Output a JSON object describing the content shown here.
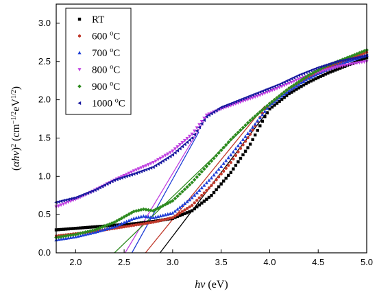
{
  "chart_data": {
    "type": "scatter",
    "xlabel": {
      "italic": "hv",
      "rest": " (eV)"
    },
    "ylabel": {
      "lead": "(",
      "italic": "αhv",
      "mid": ")",
      "sup1": "2",
      "unit": " (cm",
      "sup2": "−1/2",
      "unit2": "eV",
      "sup3": "1/2",
      "tail": ")"
    },
    "xlim": [
      1.8,
      5.0
    ],
    "ylim": [
      0.0,
      3.25
    ],
    "xticks": [
      "2.0",
      "2.5",
      "3.0",
      "3.5",
      "4.0",
      "4.5",
      "5.0"
    ],
    "yticks": [
      "0.0",
      "0.5",
      "1.0",
      "1.5",
      "2.0",
      "2.5",
      "3.0"
    ],
    "legend_position": "top-left",
    "series": [
      {
        "name": "RT",
        "unit_sup": "",
        "color": "#000000",
        "marker": "square",
        "points": [
          [
            1.8,
            0.3
          ],
          [
            2.0,
            0.32
          ],
          [
            2.2,
            0.34
          ],
          [
            2.4,
            0.36
          ],
          [
            2.6,
            0.38
          ],
          [
            2.8,
            0.41
          ],
          [
            3.0,
            0.45
          ],
          [
            3.2,
            0.55
          ],
          [
            3.4,
            0.75
          ],
          [
            3.6,
            1.05
          ],
          [
            3.8,
            1.42
          ],
          [
            3.95,
            1.78
          ],
          [
            4.0,
            1.88
          ],
          [
            4.2,
            2.08
          ],
          [
            4.4,
            2.23
          ],
          [
            4.6,
            2.35
          ],
          [
            4.8,
            2.45
          ],
          [
            5.0,
            2.55
          ]
        ]
      },
      {
        "name": "600 ",
        "unit_sup": "o",
        "unit": "C",
        "color": "#c0392b",
        "marker": "circle",
        "points": [
          [
            1.8,
            0.22
          ],
          [
            2.0,
            0.25
          ],
          [
            2.2,
            0.28
          ],
          [
            2.4,
            0.32
          ],
          [
            2.6,
            0.36
          ],
          [
            2.8,
            0.4
          ],
          [
            3.0,
            0.46
          ],
          [
            3.2,
            0.62
          ],
          [
            3.4,
            0.88
          ],
          [
            3.6,
            1.18
          ],
          [
            3.8,
            1.55
          ],
          [
            3.95,
            1.88
          ],
          [
            4.0,
            1.95
          ],
          [
            4.2,
            2.15
          ],
          [
            4.4,
            2.3
          ],
          [
            4.6,
            2.42
          ],
          [
            4.8,
            2.52
          ],
          [
            5.0,
            2.62
          ]
        ]
      },
      {
        "name": "700 ",
        "unit_sup": "o",
        "unit": "C",
        "color": "#1f3fd6",
        "marker": "triangle",
        "points": [
          [
            1.8,
            0.17
          ],
          [
            2.0,
            0.21
          ],
          [
            2.2,
            0.27
          ],
          [
            2.4,
            0.34
          ],
          [
            2.6,
            0.45
          ],
          [
            2.7,
            0.48
          ],
          [
            2.8,
            0.46
          ],
          [
            3.0,
            0.52
          ],
          [
            3.2,
            0.72
          ],
          [
            3.4,
            0.98
          ],
          [
            3.6,
            1.28
          ],
          [
            3.8,
            1.6
          ],
          [
            4.0,
            1.93
          ],
          [
            4.2,
            2.12
          ],
          [
            4.4,
            2.28
          ],
          [
            4.6,
            2.4
          ],
          [
            4.8,
            2.5
          ],
          [
            5.0,
            2.58
          ]
        ]
      },
      {
        "name": "800 ",
        "unit_sup": "o",
        "unit": "C",
        "color": "#c040e0",
        "marker": "triangle-down",
        "points": [
          [
            1.8,
            0.6
          ],
          [
            2.0,
            0.7
          ],
          [
            2.2,
            0.82
          ],
          [
            2.4,
            0.95
          ],
          [
            2.6,
            1.07
          ],
          [
            2.8,
            1.18
          ],
          [
            3.0,
            1.33
          ],
          [
            3.2,
            1.55
          ],
          [
            3.35,
            1.8
          ],
          [
            3.5,
            1.88
          ],
          [
            3.7,
            1.97
          ],
          [
            3.9,
            2.06
          ],
          [
            4.1,
            2.16
          ],
          [
            4.3,
            2.27
          ],
          [
            4.5,
            2.36
          ],
          [
            4.7,
            2.43
          ],
          [
            4.9,
            2.48
          ],
          [
            5.0,
            2.5
          ]
        ]
      },
      {
        "name": "900 ",
        "unit_sup": "o",
        "unit": "C",
        "color": "#2e8b20",
        "marker": "diamond",
        "points": [
          [
            1.8,
            0.2
          ],
          [
            2.0,
            0.24
          ],
          [
            2.2,
            0.3
          ],
          [
            2.4,
            0.4
          ],
          [
            2.6,
            0.54
          ],
          [
            2.7,
            0.57
          ],
          [
            2.8,
            0.55
          ],
          [
            3.0,
            0.68
          ],
          [
            3.2,
            0.92
          ],
          [
            3.4,
            1.2
          ],
          [
            3.6,
            1.48
          ],
          [
            3.8,
            1.73
          ],
          [
            4.0,
            1.95
          ],
          [
            4.2,
            2.15
          ],
          [
            4.4,
            2.32
          ],
          [
            4.6,
            2.45
          ],
          [
            4.8,
            2.55
          ],
          [
            5.0,
            2.65
          ]
        ]
      },
      {
        "name": "1000 ",
        "unit_sup": "o",
        "unit": "C",
        "color": "#1a1aa0",
        "marker": "triangle-left",
        "points": [
          [
            1.8,
            0.66
          ],
          [
            2.0,
            0.72
          ],
          [
            2.2,
            0.82
          ],
          [
            2.4,
            0.95
          ],
          [
            2.6,
            1.03
          ],
          [
            2.8,
            1.12
          ],
          [
            3.0,
            1.28
          ],
          [
            3.2,
            1.5
          ],
          [
            3.35,
            1.78
          ],
          [
            3.5,
            1.9
          ],
          [
            3.7,
            2.0
          ],
          [
            3.9,
            2.1
          ],
          [
            4.1,
            2.2
          ],
          [
            4.3,
            2.32
          ],
          [
            4.5,
            2.42
          ],
          [
            4.7,
            2.5
          ],
          [
            4.9,
            2.55
          ],
          [
            5.0,
            2.58
          ]
        ]
      }
    ],
    "fit_lines": [
      {
        "color": "#000000",
        "from": [
          2.87,
          0.0
        ],
        "to": [
          3.98,
          1.85
        ]
      },
      {
        "color": "#c0392b",
        "from": [
          2.72,
          0.0
        ],
        "to": [
          3.95,
          1.92
        ]
      },
      {
        "color": "#c040e0",
        "from": [
          2.51,
          0.0
        ],
        "to": [
          3.37,
          1.82
        ]
      },
      {
        "color": "#1f3fd6",
        "from": [
          2.58,
          0.0
        ],
        "to": [
          3.27,
          1.58
        ]
      },
      {
        "color": "#2e8b20",
        "from": [
          2.4,
          0.0
        ],
        "to": [
          3.97,
          1.92
        ]
      }
    ]
  }
}
